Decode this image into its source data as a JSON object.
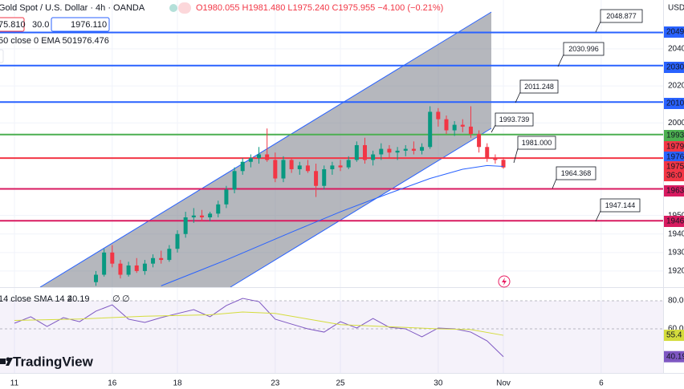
{
  "header": {
    "symbol": "Gold Spot / U.S. Dollar · 4h · OANDA",
    "ohlc": [
      "O1980.055",
      "H1981.480",
      "L1975.240",
      "C1975.955",
      "−4.100 (−0.21%)"
    ],
    "bid": "75.810",
    "spread": "30.0",
    "ask": "1976.110",
    "indicator": "50 close 0 EMA 50",
    "indicator_value": "1976.476",
    "currency": "USD",
    "logo": "TradingView"
  },
  "chart_data": [
    {
      "type": "candlestick",
      "x": [
        2.5,
        2.75,
        3,
        3.25,
        3.5,
        3.75,
        4,
        4.25,
        4.5,
        4.75,
        5,
        5.25,
        5.5,
        5.75,
        6,
        6.25,
        6.5,
        6.75,
        7,
        7.25,
        7.5,
        7.75,
        8,
        8.25,
        8.5,
        8.75,
        9,
        9.25,
        9.5,
        9.75,
        10,
        10.25,
        10.5,
        10.75,
        11,
        11.25,
        11.5,
        11.75,
        12,
        12.25,
        12.5,
        12.75,
        13,
        13.25,
        13.5,
        13.75,
        14,
        14.25,
        14.5,
        14.75,
        15
      ],
      "open": [
        1914,
        1918,
        1930,
        1924,
        1918,
        1923,
        1920,
        1924,
        1927,
        1926,
        1932,
        1940,
        1949,
        1950,
        1949,
        1951,
        1956,
        1964,
        1974,
        1979,
        1981,
        1983,
        1980,
        1970,
        1980,
        1975,
        1977,
        1974,
        1966,
        1975,
        1977,
        1976,
        1980,
        1988,
        1980,
        1983,
        1986,
        1984,
        1985,
        1986,
        1985,
        1987,
        2006,
        2002,
        1996,
        1999,
        1998,
        1994,
        1987,
        1981,
        1980.055
      ],
      "high": [
        1920,
        1932,
        1934,
        1926,
        1925,
        1927,
        1926,
        1929,
        1931,
        1934,
        1942,
        1952,
        1954,
        1953,
        1952,
        1958,
        1966,
        1976,
        1981,
        1983,
        1987,
        1997,
        1984,
        1982,
        1981,
        1979,
        1980,
        1978,
        1977,
        1979,
        1980,
        1982,
        1990,
        1992,
        1985,
        1989,
        1988,
        1987,
        1988,
        1990,
        1989,
        2009,
        2008,
        2004,
        2001,
        2002,
        2009,
        1996,
        1989,
        1983,
        1981.48
      ],
      "low": [
        1912,
        1917,
        1922,
        1916,
        1917,
        1919,
        1918,
        1922,
        1924,
        1925,
        1930,
        1938,
        1946,
        1947,
        1947,
        1949,
        1954,
        1962,
        1972,
        1976,
        1978,
        1979,
        1968,
        1968,
        1973,
        1972,
        1973,
        1960,
        1964,
        1972,
        1974,
        1975,
        1979,
        1978,
        1977,
        1980,
        1981,
        1980,
        1982,
        1983,
        1983,
        1986,
        1998,
        1994,
        1993,
        1995,
        1992,
        1984,
        1979,
        1978,
        1975.24
      ],
      "close": [
        1918,
        1930,
        1924,
        1918,
        1923,
        1920,
        1924,
        1927,
        1926,
        1932,
        1940,
        1949,
        1950,
        1949,
        1951,
        1956,
        1964,
        1974,
        1979,
        1981,
        1983,
        1980,
        1970,
        1980,
        1975,
        1977,
        1974,
        1966,
        1975,
        1977,
        1976,
        1980,
        1988,
        1980,
        1983,
        1986,
        1984,
        1985,
        1986,
        1985,
        1987,
        2006,
        2002,
        1996,
        1999,
        1998,
        1994,
        1987,
        1981,
        1980,
        1975.955
      ],
      "up_color": "#089981",
      "down_color": "#f23645",
      "xlim": [
        -0.443,
        19.9
      ],
      "ylim": [
        1911.3,
        2066.4
      ],
      "xticks": [
        {
          "value": 0,
          "label": "11"
        },
        {
          "value": 3,
          "label": "16"
        },
        {
          "value": 5,
          "label": "18"
        },
        {
          "value": 8,
          "label": "23"
        },
        {
          "value": 10,
          "label": "25"
        },
        {
          "value": 13,
          "label": "30"
        },
        {
          "value": 15,
          "label": "Nov"
        },
        {
          "value": 18,
          "label": "6"
        }
      ],
      "yticks": [
        1920,
        1930,
        1940,
        1950,
        2000,
        2020,
        2040
      ],
      "grid": true,
      "ema": {
        "color": "#2962ff",
        "x": [
          4.5,
          6.5,
          8.5,
          10,
          11.5,
          12.75,
          13.75,
          14.5,
          15
        ],
        "values": [
          1912,
          1926,
          1941,
          1952,
          1962,
          1970,
          1975,
          1977,
          1976.476
        ]
      },
      "levels": {
        "values": [
          2048.877,
          2030.996,
          2011.248,
          1993.739,
          1981,
          1964.368,
          1947.144
        ],
        "value_labels": [
          "2048.877",
          "2030.996",
          "2011.248",
          "1993.739",
          "1981.000",
          "1964.368",
          "1947.144"
        ],
        "colors": [
          "#2962ff",
          "#2962ff",
          "#2962ff",
          "#4caf50",
          "#f23645",
          "#d81b60",
          "#d81b60"
        ]
      },
      "badges": {
        "values": [
          2049,
          2030,
          2010,
          1993,
          1979,
          1976,
          1975,
          1963,
          1946
        ],
        "colors": [
          "#2962ff",
          "#2962ff",
          "#2962ff",
          "#4caf50",
          "#f23645",
          "#2962ff",
          "#f23645",
          "#d81b60",
          "#d81b60"
        ]
      },
      "countdown": "36:0"
    },
    {
      "type": "line",
      "title": "14 close SMA 14 2",
      "readout": "40.19",
      "extras": [
        "∅",
        "∅"
      ],
      "series": [
        {
          "color": "#7e57c2",
          "x": [
            0,
            0.5,
            1,
            1.5,
            2,
            2.5,
            3,
            3.5,
            4,
            4.5,
            5,
            5.5,
            6,
            6.5,
            7,
            7.5,
            8,
            8.5,
            9,
            9.5,
            10,
            10.5,
            11,
            11.5,
            12,
            12.5,
            13,
            13.5,
            14,
            14.5,
            15
          ],
          "values": [
            64,
            68.6,
            61.7,
            68,
            65.1,
            72.6,
            77.1,
            66.9,
            64.6,
            68,
            70.9,
            73.7,
            68.6,
            76.6,
            81.7,
            79.4,
            66.9,
            63.4,
            60,
            57.7,
            65.1,
            60.6,
            67.4,
            61.1,
            60,
            54.3,
            60.6,
            60,
            57.7,
            51.4,
            40.19
          ]
        },
        {
          "color": "#d4dc3c",
          "x": [
            0,
            2,
            4,
            6,
            7,
            8,
            9,
            10,
            11,
            12,
            13,
            14,
            15
          ],
          "values": [
            66,
            67,
            69,
            70,
            72,
            71,
            67,
            63,
            62,
            61,
            60,
            59.5,
            55.4
          ]
        }
      ],
      "xlim": [
        -0.443,
        19.9
      ],
      "ylim": [
        28.6,
        89.7
      ],
      "yticks": [
        {
          "value": 80,
          "label": "80.00"
        },
        {
          "value": 60,
          "label": "60.00"
        }
      ],
      "badges": {
        "values": [
          55.4,
          40.19
        ],
        "colors": [
          "#d4dc3c",
          "#7e57c2"
        ]
      }
    }
  ]
}
